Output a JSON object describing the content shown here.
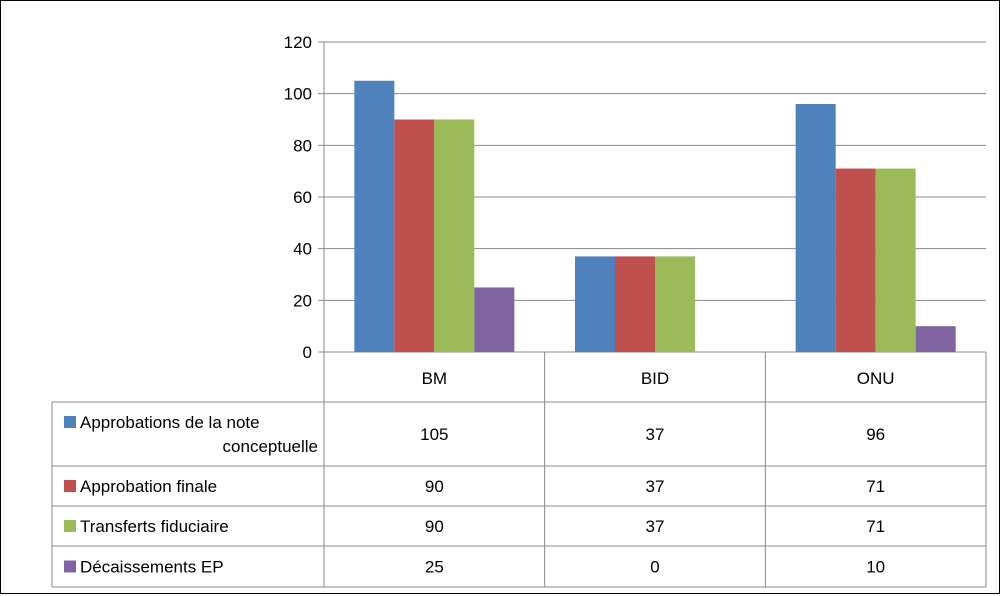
{
  "chart_data": {
    "type": "bar",
    "title": "",
    "xlabel": "",
    "ylabel": "",
    "ylim": [
      0,
      120
    ],
    "yticks": [
      0,
      20,
      40,
      60,
      80,
      100,
      120
    ],
    "grid": true,
    "legend_placement": "data-table",
    "categories": [
      "BM",
      "BID",
      "ONU"
    ],
    "series": [
      {
        "name": "Approbations de la note conceptuelle",
        "name_lines": [
          "Approbations de la note",
          "conceptuelle"
        ],
        "color": "#4F81BD",
        "values": [
          105,
          37,
          96
        ],
        "display": [
          "105",
          "37",
          "96"
        ]
      },
      {
        "name": "Approbation finale",
        "name_lines": [
          "Approbation finale"
        ],
        "color": "#C0504D",
        "values": [
          90,
          37,
          71
        ],
        "display": [
          "90",
          "37",
          "71"
        ]
      },
      {
        "name": "Transferts fiduciaire",
        "name_lines": [
          "Transferts fiduciaire"
        ],
        "color": "#9BBB59",
        "values": [
          90,
          37,
          71
        ],
        "display": [
          "90",
          "37",
          "71"
        ]
      },
      {
        "name": "Décaissements EP",
        "name_lines": [
          "Décaissements EP"
        ],
        "color": "#8064A2",
        "values": [
          25,
          0,
          10
        ],
        "display": [
          "25",
          "0",
          "10"
        ]
      }
    ]
  }
}
